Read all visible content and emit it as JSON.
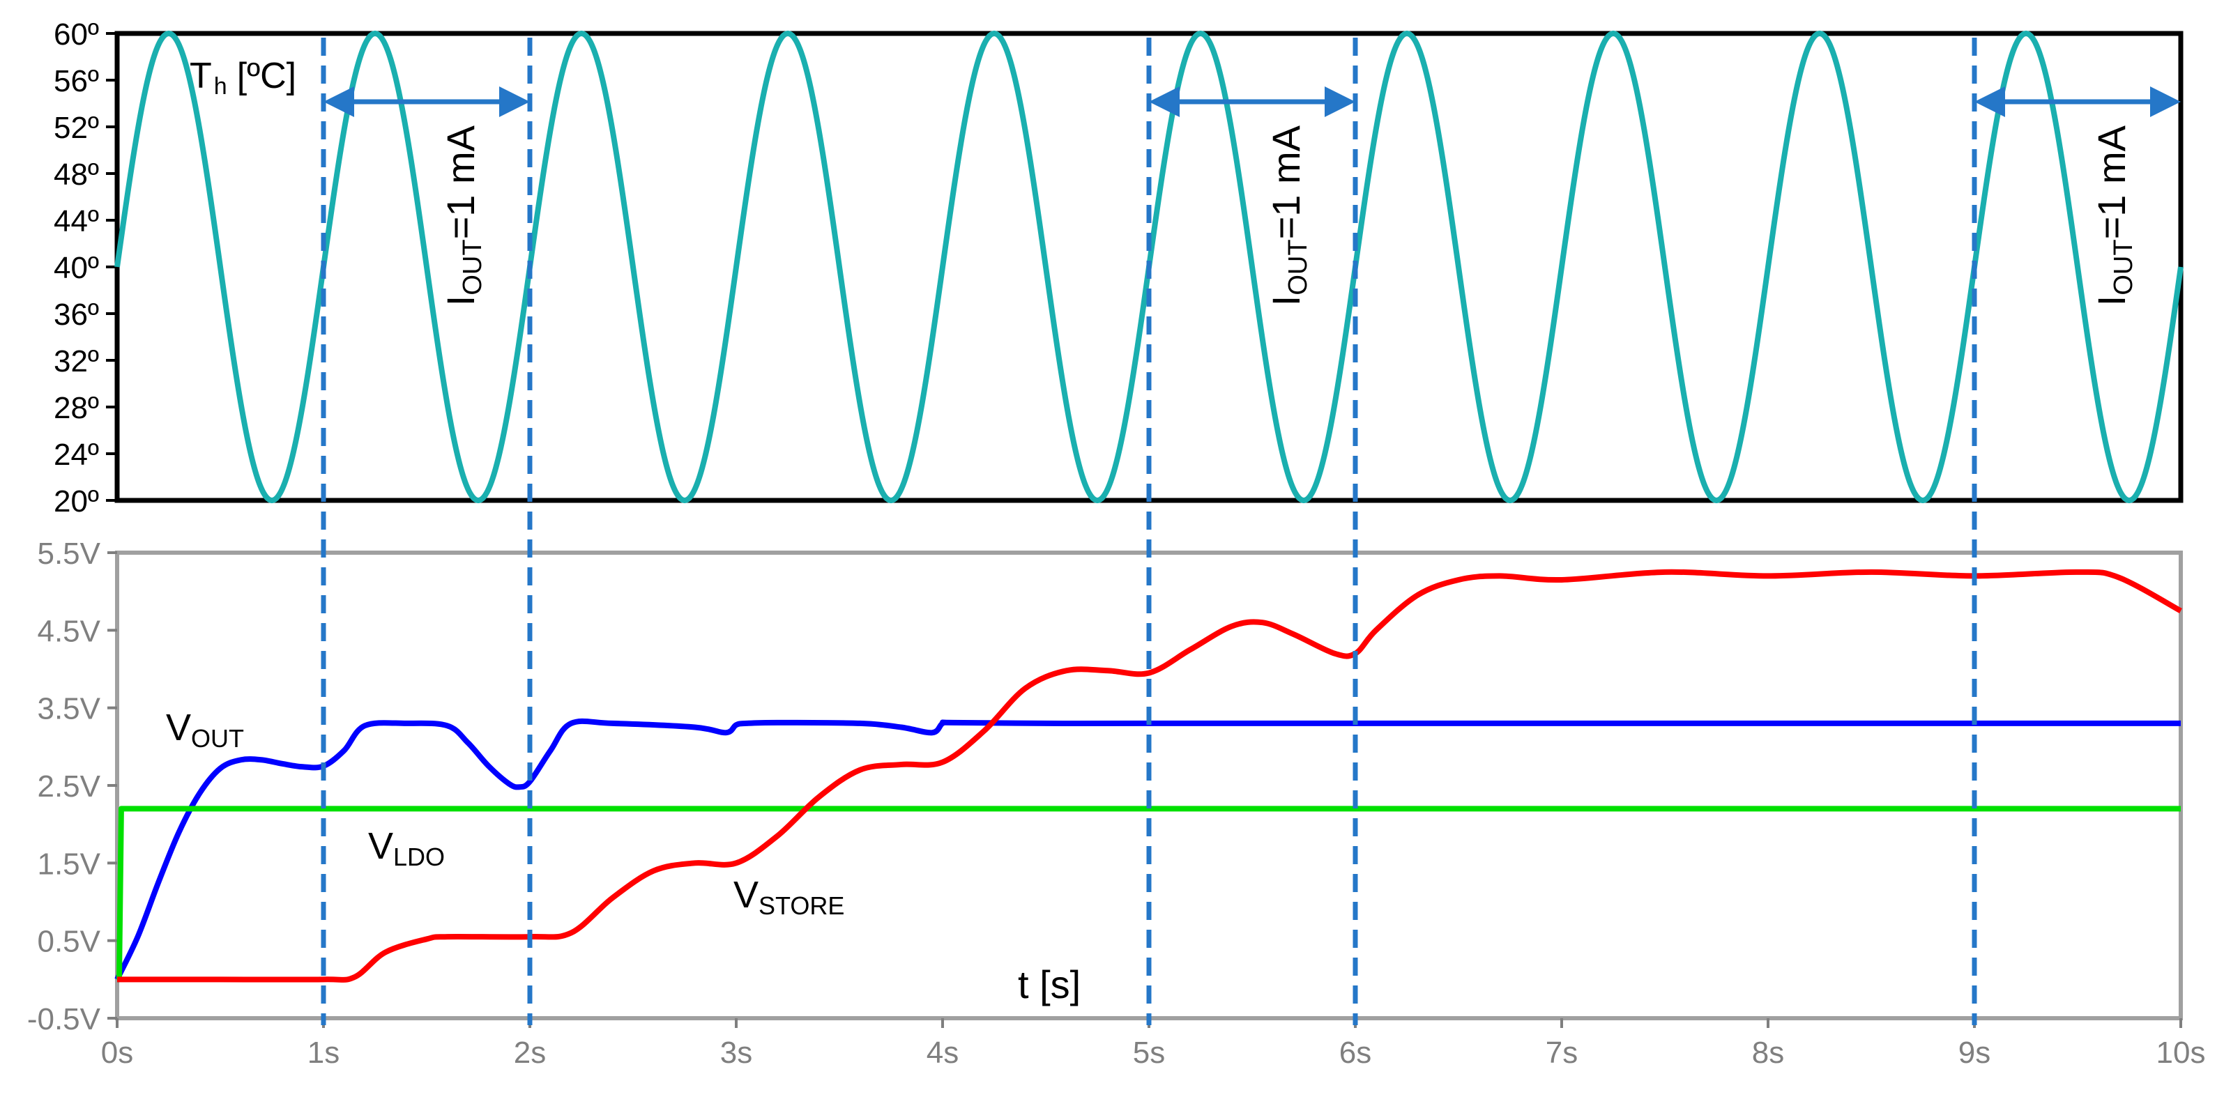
{
  "chart_data": [
    {
      "type": "line",
      "ylabel_main": "T",
      "ylabel_sub": "h",
      "ylabel_unit": "[ºC]",
      "yticks": [
        "60º",
        "56º",
        "52º",
        "48º",
        "44º",
        "40º",
        "36º",
        "32º",
        "28º",
        "24º",
        "20º"
      ],
      "ylim": [
        20,
        60
      ],
      "xlim": [
        0,
        10
      ],
      "grid": false,
      "series": [
        {
          "kind": "sine",
          "color": "#1aafaf",
          "offset": 40,
          "amplitude": 20,
          "period_s": 1,
          "x": [
            0,
            0.25,
            0.5,
            0.75,
            1,
            1.25,
            1.5,
            1.75,
            2,
            2.25,
            2.5,
            2.75,
            3,
            3.25,
            3.5,
            3.75,
            4,
            4.25,
            4.5,
            4.75,
            5,
            5.25,
            5.5,
            5.75,
            6,
            6.25,
            6.5,
            6.75,
            7,
            7.25,
            7.5,
            7.75,
            8,
            8.25,
            8.5,
            8.75,
            9,
            9.25,
            9.5,
            9.75,
            10
          ],
          "values": [
            40,
            60,
            40,
            20,
            40,
            60,
            40,
            20,
            40,
            60,
            40,
            20,
            40,
            60,
            40,
            20,
            40,
            60,
            40,
            20,
            40,
            60,
            40,
            20,
            40,
            60,
            40,
            20,
            40,
            60,
            40,
            20,
            40,
            60,
            40,
            20,
            40,
            60,
            40,
            20,
            40
          ]
        }
      ]
    },
    {
      "type": "line",
      "xlabel": "t [s]",
      "xticks": [
        "0s",
        "1s",
        "2s",
        "3s",
        "4s",
        "5s",
        "6s",
        "7s",
        "8s",
        "9s",
        "10s"
      ],
      "yticks": [
        "5.5V",
        "4.5V",
        "3.5V",
        "2.5V",
        "1.5V",
        "0.5V",
        "-0.5V"
      ],
      "ylim": [
        -0.5,
        5.5
      ],
      "xlim": [
        0,
        10
      ],
      "grid": false,
      "series": [
        {
          "label_main": "V",
          "label_sub": "OUT",
          "color": "#0000ff",
          "x": [
            0,
            0.1,
            0.2,
            0.3,
            0.4,
            0.5,
            0.6,
            0.7,
            0.8,
            0.9,
            1.0,
            1.1,
            1.2,
            1.4,
            1.6,
            1.7,
            1.8,
            1.9,
            1.95,
            2.0,
            2.1,
            2.2,
            2.4,
            2.8,
            2.95,
            3.0,
            3.05,
            3.2,
            3.6,
            3.8,
            3.95,
            4.0,
            4.05,
            4.5,
            5,
            6,
            7,
            8,
            9,
            10
          ],
          "values": [
            0,
            0.55,
            1.25,
            1.9,
            2.4,
            2.72,
            2.83,
            2.83,
            2.78,
            2.74,
            2.75,
            2.95,
            3.27,
            3.3,
            3.27,
            3.05,
            2.75,
            2.52,
            2.48,
            2.55,
            2.95,
            3.3,
            3.3,
            3.25,
            3.18,
            3.28,
            3.3,
            3.31,
            3.3,
            3.25,
            3.18,
            3.3,
            3.31,
            3.3,
            3.3,
            3.3,
            3.3,
            3.3,
            3.3,
            3.3
          ]
        },
        {
          "label_main": "V",
          "label_sub": "LDO",
          "color": "#00e000",
          "x": [
            0,
            0.01,
            0.02,
            10
          ],
          "values": [
            0,
            0,
            2.2,
            2.2
          ]
        },
        {
          "label_main": "V",
          "label_sub": "STORE",
          "color": "#ff0000",
          "x": [
            0,
            0.5,
            1.0,
            1.15,
            1.3,
            1.5,
            1.6,
            2.0,
            2.2,
            2.4,
            2.6,
            2.8,
            3.0,
            3.2,
            3.4,
            3.6,
            3.8,
            4.0,
            4.2,
            4.4,
            4.6,
            4.8,
            5.0,
            5.2,
            5.4,
            5.55,
            5.7,
            5.9,
            6.0,
            6.1,
            6.3,
            6.5,
            6.7,
            7.0,
            7.5,
            8.0,
            8.5,
            9.0,
            9.5,
            9.7,
            10.0
          ],
          "values": [
            0,
            0,
            0,
            0.03,
            0.35,
            0.52,
            0.55,
            0.55,
            0.6,
            1.05,
            1.4,
            1.5,
            1.5,
            1.85,
            2.35,
            2.7,
            2.77,
            2.8,
            3.2,
            3.75,
            3.98,
            3.98,
            3.95,
            4.25,
            4.55,
            4.6,
            4.45,
            4.2,
            4.2,
            4.5,
            4.95,
            5.15,
            5.2,
            5.15,
            5.25,
            5.2,
            5.25,
            5.2,
            5.25,
            5.18,
            4.75
          ]
        }
      ]
    }
  ],
  "annotations": {
    "iout_main": "I",
    "iout_sub": "OUT",
    "iout_rest": "=1 mA",
    "dashed_markers_s": [
      1,
      2,
      5,
      6,
      9
    ],
    "current_windows_s": [
      [
        1,
        2
      ],
      [
        5,
        6
      ],
      [
        9,
        10
      ]
    ]
  },
  "colors": {
    "dashed_marker": "#2577c8",
    "top_frame": "#000000",
    "bottom_frame": "#a0a0a0",
    "tick_top": "#000000",
    "tick_bottom": "#7f7f7f"
  }
}
